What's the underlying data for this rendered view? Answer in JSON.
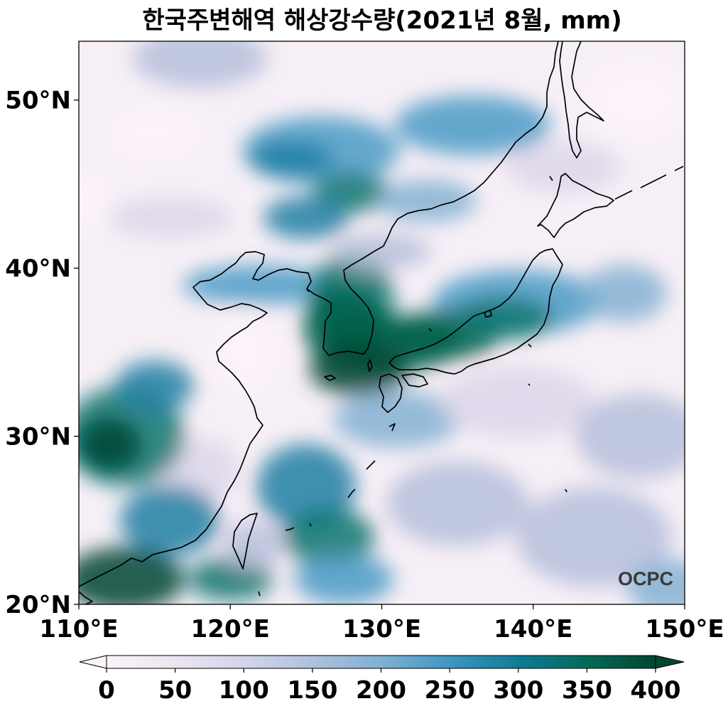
{
  "title": "한국주변해역 해상강수량(2021년 8월, mm)",
  "map": {
    "lon_range": [
      110,
      150
    ],
    "lat_range": [
      20,
      53.5
    ],
    "x_ticks": [
      "110°E",
      "120°E",
      "130°E",
      "140°E",
      "150°E"
    ],
    "y_ticks": [
      "20°N",
      "30°N",
      "40°N",
      "50°N"
    ],
    "watermark": "OCPC"
  },
  "colorbar": {
    "ticks": [
      "0",
      "50",
      "100",
      "150",
      "200",
      "250",
      "300",
      "350",
      "400"
    ],
    "range": [
      0,
      400
    ],
    "extend": "both",
    "colors": [
      "#fbf3f9",
      "#dcd6ea",
      "#b6c0dc",
      "#84b2d4",
      "#4a9bc5",
      "#1f7fa3",
      "#0a7670",
      "#05604a",
      "#014632"
    ]
  }
}
